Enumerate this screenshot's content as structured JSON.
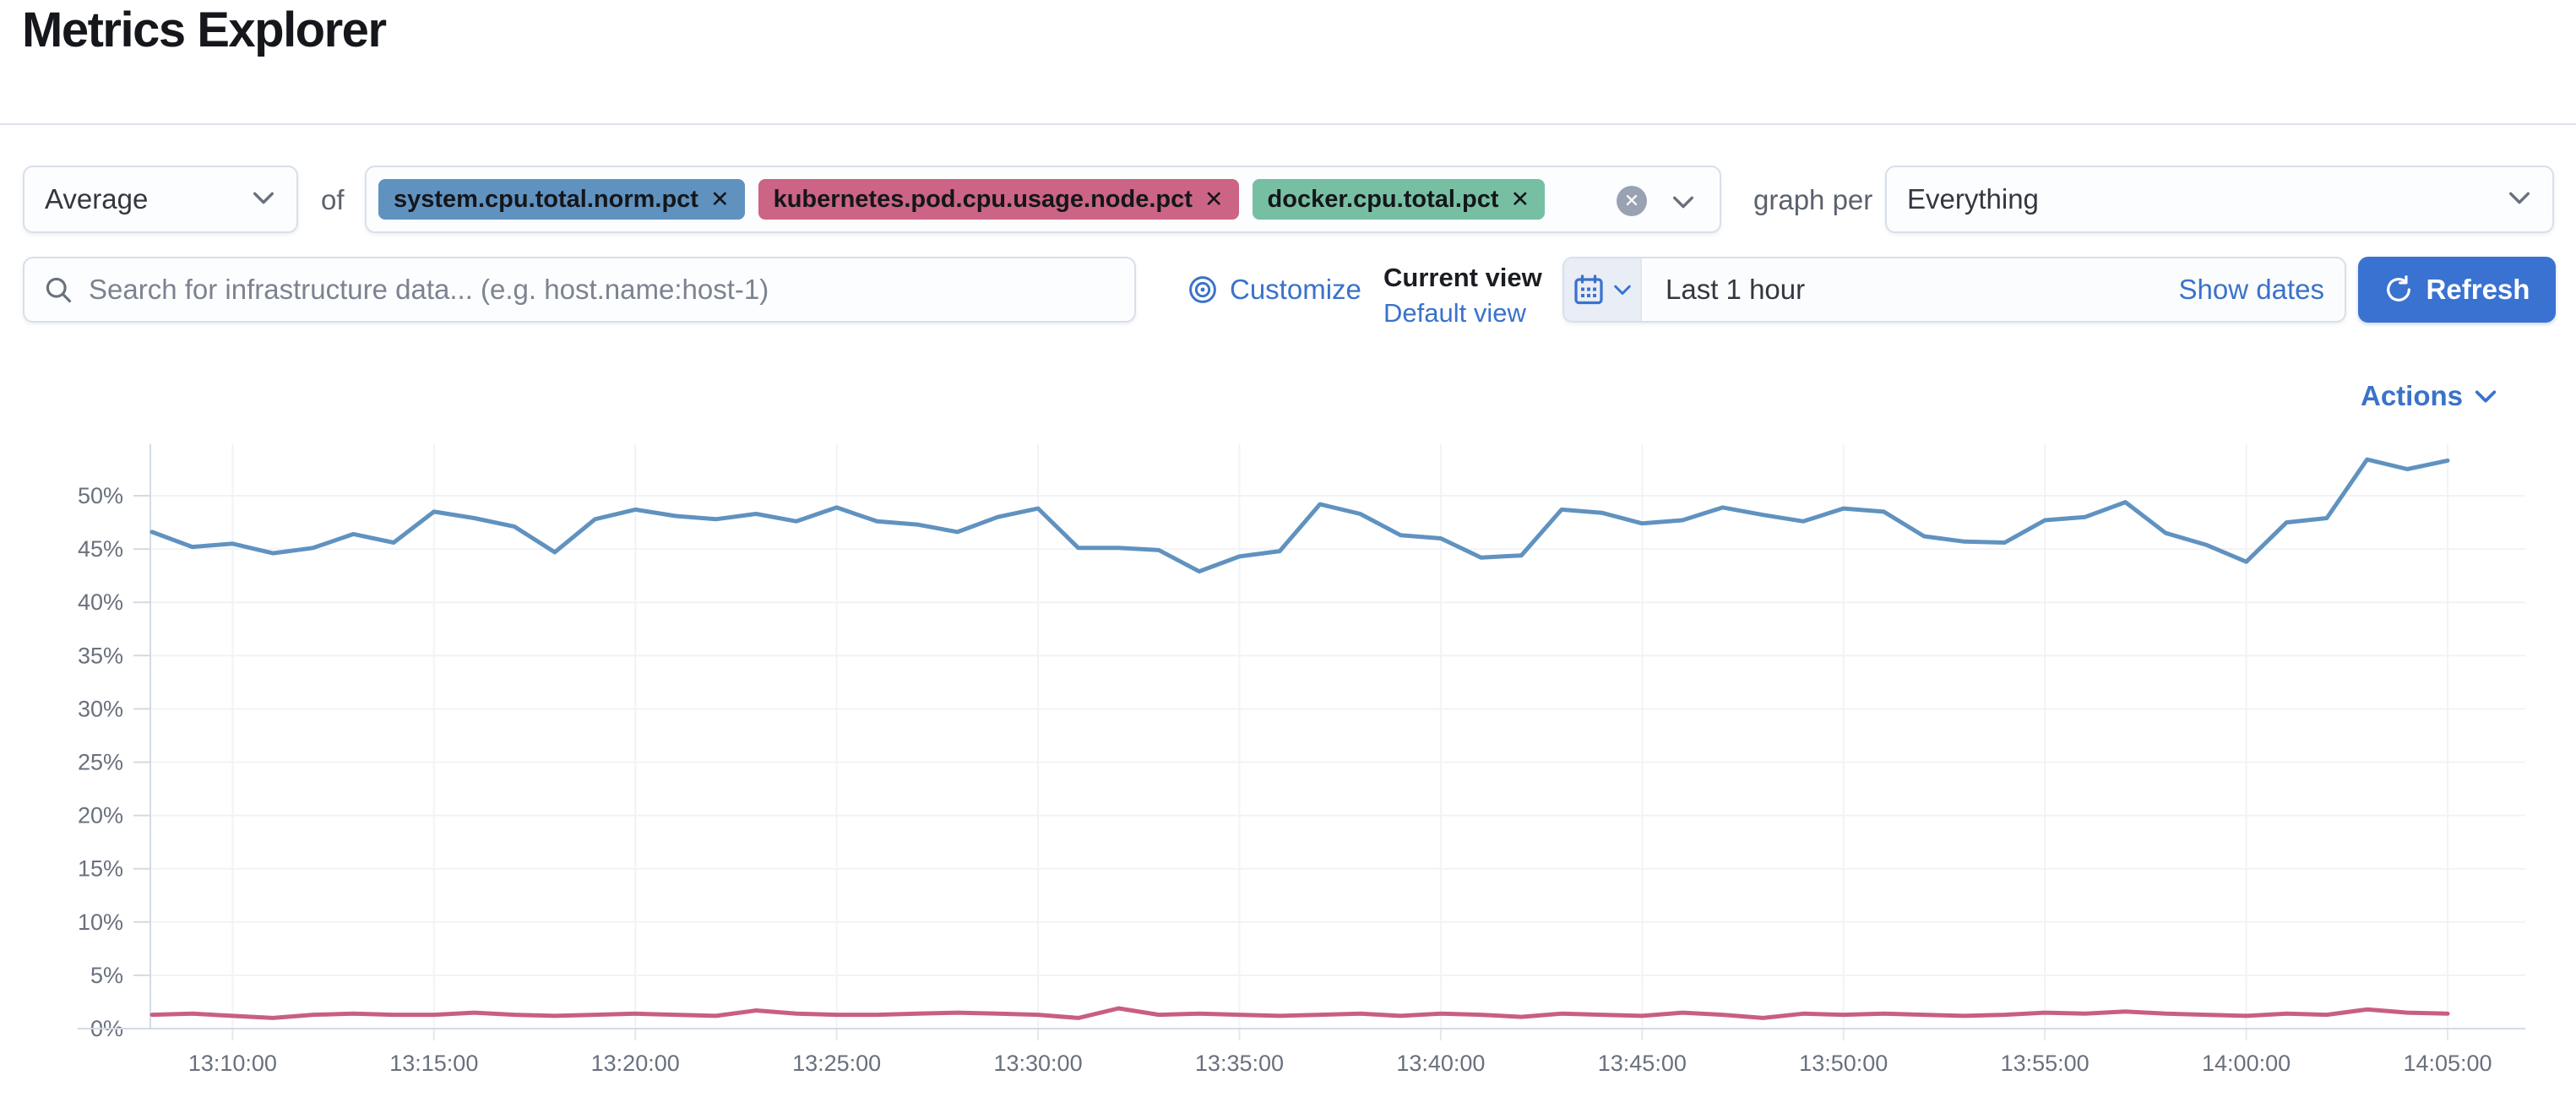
{
  "page_title": "Metrics Explorer",
  "toolbar": {
    "aggregation_value": "Average",
    "of_label": "of",
    "metrics": [
      {
        "label": "system.cpu.total.norm.pct",
        "color": "#6092C0"
      },
      {
        "label": "kubernetes.pod.cpu.usage.node.pct",
        "color": "#CC6485"
      },
      {
        "label": "docker.cpu.total.pct",
        "color": "#77BFA3"
      }
    ],
    "remove_glyph": "✕",
    "graph_per_label": "graph per",
    "group_by_value": "Everything"
  },
  "search": {
    "placeholder": "Search for infrastructure data... (e.g. host.name:host-1)"
  },
  "views": {
    "customize_label": "Customize",
    "current_view_title": "Current view",
    "selected_view": "Default view"
  },
  "timepicker": {
    "range": "Last 1 hour",
    "show_dates": "Show dates",
    "refresh": "Refresh"
  },
  "actions_label": "Actions",
  "colors": {
    "link_blue": "#3a72cb",
    "refresh_blue": "#3a72d1",
    "series_blue": "#6092C0",
    "series_pink": "#C95E83"
  },
  "chart_data": {
    "type": "line",
    "title": "",
    "xlabel": "",
    "ylabel": "",
    "y_unit": "%",
    "ylim": [
      0,
      57
    ],
    "y_ticks": [
      0,
      5,
      10,
      15,
      20,
      25,
      30,
      35,
      40,
      45,
      50
    ],
    "x_start": "13:08:00",
    "x_step_seconds": 60,
    "x_tick_labels": [
      "13:10:00",
      "13:15:00",
      "13:20:00",
      "13:25:00",
      "13:30:00",
      "13:35:00",
      "13:40:00",
      "13:45:00",
      "13:50:00",
      "13:55:00",
      "14:00:00",
      "14:05:00"
    ],
    "grid": true,
    "legend": "none",
    "series": [
      {
        "name": "system.cpu.total.norm.pct",
        "color": "#6092C0",
        "values": [
          46.6,
          45.2,
          45.5,
          44.6,
          45.1,
          46.4,
          45.6,
          48.5,
          47.9,
          47.1,
          44.7,
          47.8,
          48.7,
          48.1,
          47.8,
          48.3,
          47.6,
          48.9,
          47.6,
          47.3,
          46.6,
          48.0,
          48.8,
          45.1,
          45.1,
          44.9,
          42.9,
          44.3,
          44.8,
          49.2,
          48.3,
          46.3,
          46.0,
          44.2,
          44.4,
          48.7,
          48.4,
          47.4,
          47.7,
          48.9,
          48.2,
          47.6,
          48.8,
          48.5,
          46.2,
          45.7,
          45.6,
          47.7,
          48.0,
          49.4,
          46.5,
          45.4,
          43.8,
          47.5,
          47.9,
          53.4,
          52.5,
          53.3
        ]
      },
      {
        "name": "kubernetes.pod.cpu.usage.node.pct",
        "color": "#C95E83",
        "values": [
          1.3,
          1.4,
          1.2,
          1.0,
          1.3,
          1.4,
          1.3,
          1.3,
          1.5,
          1.3,
          1.2,
          1.3,
          1.4,
          1.3,
          1.2,
          1.7,
          1.4,
          1.3,
          1.3,
          1.4,
          1.5,
          1.4,
          1.3,
          1.0,
          1.9,
          1.3,
          1.4,
          1.3,
          1.2,
          1.3,
          1.4,
          1.2,
          1.4,
          1.3,
          1.1,
          1.4,
          1.3,
          1.2,
          1.5,
          1.3,
          1.0,
          1.4,
          1.3,
          1.4,
          1.3,
          1.2,
          1.3,
          1.5,
          1.4,
          1.6,
          1.4,
          1.3,
          1.2,
          1.4,
          1.3,
          1.8,
          1.5,
          1.4
        ]
      }
    ]
  }
}
